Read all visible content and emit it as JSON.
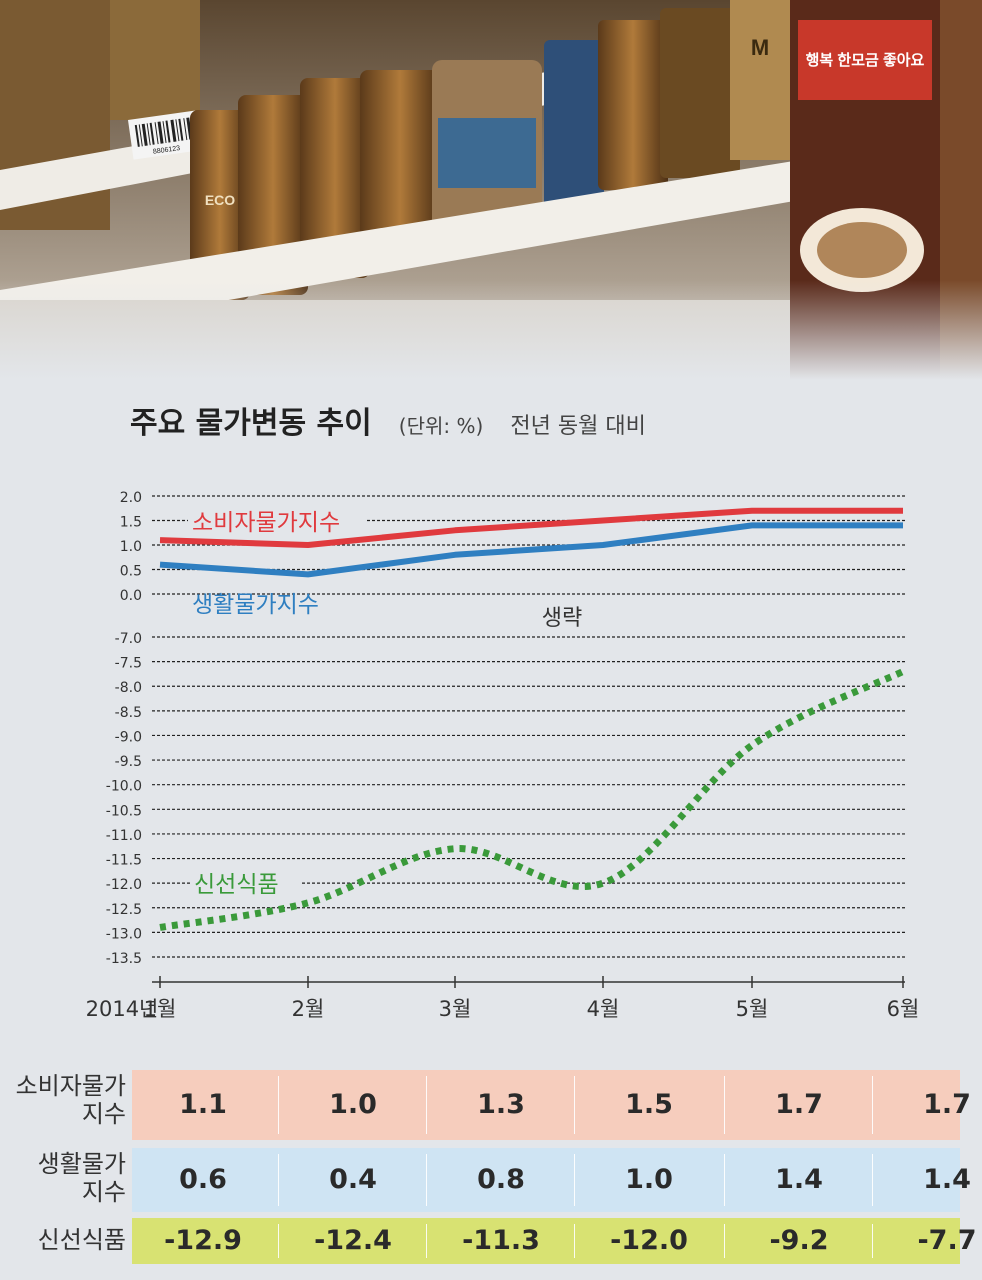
{
  "title": "주요 물가변동 추이",
  "unit": "(단위: %)",
  "basis": "전년 동월 대비",
  "omitted_label": "생략",
  "year_label": "2014년",
  "photo_texts": {
    "barcode_text": "8806123",
    "brand_fragment": "ECO",
    "jar_text": "M",
    "banner_text": "행복 한모금 좋아요"
  },
  "chart_data": {
    "type": "line",
    "categories": [
      "1월",
      "2월",
      "3월",
      "4월",
      "5월",
      "6월"
    ],
    "series": [
      {
        "name": "소비자물가지수",
        "values": [
          1.1,
          1.0,
          1.3,
          1.5,
          1.7,
          1.7
        ],
        "color": "#e03a3e",
        "style": "solid"
      },
      {
        "name": "생활물가지수",
        "values": [
          0.6,
          0.4,
          0.8,
          1.0,
          1.4,
          1.4
        ],
        "color": "#2f7fc1",
        "style": "solid"
      },
      {
        "name": "신선식품",
        "values": [
          -12.9,
          -12.4,
          -11.3,
          -12.0,
          -9.2,
          -7.7
        ],
        "color": "#3a9a3a",
        "style": "dotted"
      }
    ],
    "upper_axis": {
      "ylim": [
        0.0,
        2.0
      ],
      "ticks": [
        "2.0",
        "1.5",
        "1.0",
        "0.5",
        "0.0"
      ]
    },
    "lower_axis": {
      "ylim": [
        -13.5,
        -7.0
      ],
      "ticks": [
        "-7.0",
        "-7.5",
        "-8.0",
        "-8.5",
        "-9.0",
        "-9.5",
        "-10.0",
        "-10.5",
        "-11.0",
        "-11.5",
        "-12.0",
        "-12.5",
        "-13.0",
        "-13.5"
      ]
    }
  },
  "table": {
    "rows": [
      {
        "label_lines": [
          "소비자물가",
          "지수"
        ],
        "values": [
          "1.1",
          "1.0",
          "1.3",
          "1.5",
          "1.7",
          "1.7"
        ],
        "color": "#f6cdbd"
      },
      {
        "label_lines": [
          "생활물가",
          "지수"
        ],
        "values": [
          "0.6",
          "0.4",
          "0.8",
          "1.0",
          "1.4",
          "1.4"
        ],
        "color": "#cfe4f3"
      },
      {
        "label_lines": [
          "신선식품"
        ],
        "values": [
          "-12.9",
          "-12.4",
          "-11.3",
          "-12.0",
          "-9.2",
          "-7.7"
        ],
        "color": "#d8e272"
      }
    ]
  }
}
